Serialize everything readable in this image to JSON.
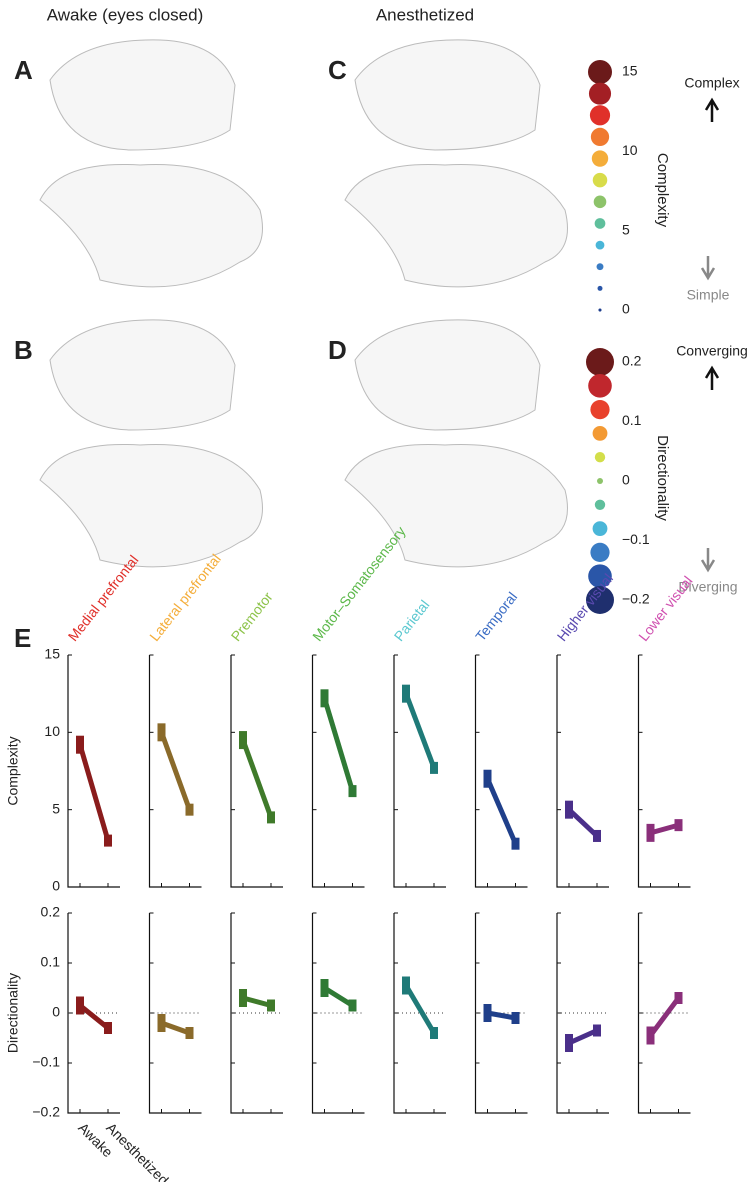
{
  "headers": [
    "Awake (eyes closed)",
    "Anesthetized"
  ],
  "panel_labels": [
    "A",
    "B",
    "C",
    "D",
    "E"
  ],
  "complexity_legend": {
    "title": "Complexity",
    "range": [
      0,
      15
    ],
    "ticks": [
      15,
      10,
      5,
      0
    ],
    "top": "Complex",
    "bottom": "Simple",
    "colors": [
      "#6b1a1a",
      "#a31f24",
      "#e0302a",
      "#f07a30",
      "#f4ad3a",
      "#d8dc4a",
      "#8dc36a",
      "#5fbf9c",
      "#4ab6d8",
      "#3a7cc4",
      "#2a56a8",
      "#1e3d8c"
    ]
  },
  "directionality_legend": {
    "title": "Directionality",
    "range": [
      -0.2,
      0.2
    ],
    "ticks": [
      0.2,
      0.1,
      0,
      {
        "value": -0.1,
        "label": "−0.1"
      },
      {
        "value": -0.2,
        "label": "−0.2"
      }
    ],
    "top": "Converging",
    "bottom": "Diverging",
    "colors": [
      "#6b1a1a",
      "#c0272d",
      "#e8412c",
      "#f39a34",
      "#d3de4a",
      "#8dc36a",
      "#5fbf9c",
      "#4ab6d8",
      "#3a7cc4",
      "#2a56a8",
      "#1f2f6e"
    ]
  },
  "chart_data": [
    {
      "type": "slope",
      "ylabel": "Complexity",
      "categories": [
        "Medial prefrontal",
        "Lateral prefrontal",
        "Premotor",
        "Motor–Somatosensory",
        "Parietal",
        "Temporal",
        "Higher visual",
        "Lower visual"
      ],
      "colors": [
        "#8a1c1c",
        "#8a6a2a",
        "#3f7a2a",
        "#2f7a35",
        "#1f7a78",
        "#1f3f8a",
        "#4a2f8a",
        "#8a2f7a"
      ],
      "line_colors": [
        "#e0302a",
        "#f4ad3a",
        "#8dc34a",
        "#5cb84a",
        "#5cc8d0",
        "#3a6cc4",
        "#5a4ab0",
        "#d050b0"
      ],
      "series": [
        {
          "name": "Awake",
          "values": [
            9.2,
            10,
            9.5,
            12.2,
            12.5,
            7,
            5,
            3.5
          ]
        },
        {
          "name": "Anesthetized",
          "values": [
            3,
            5,
            4.5,
            6.2,
            7.7,
            2.8,
            3.3,
            4
          ]
        }
      ],
      "ylim": [
        0,
        15
      ],
      "yticks": [
        0,
        5,
        10,
        15
      ]
    },
    {
      "type": "slope",
      "ylabel": "Directionality",
      "series": [
        {
          "name": "Awake",
          "values": [
            0.015,
            -0.02,
            0.03,
            0.05,
            0.055,
            0,
            -0.06,
            -0.045
          ]
        },
        {
          "name": "Anesthetized",
          "values": [
            -0.03,
            -0.04,
            0.015,
            0.015,
            -0.04,
            -0.01,
            -0.035,
            0.03
          ]
        }
      ],
      "ylim": [
        -0.2,
        0.2
      ],
      "yticks": [
        {
          "value": -0.2,
          "label": "−0.2"
        },
        {
          "value": -0.1,
          "label": "−0.1"
        },
        0,
        0.1,
        0.2
      ]
    }
  ]
}
